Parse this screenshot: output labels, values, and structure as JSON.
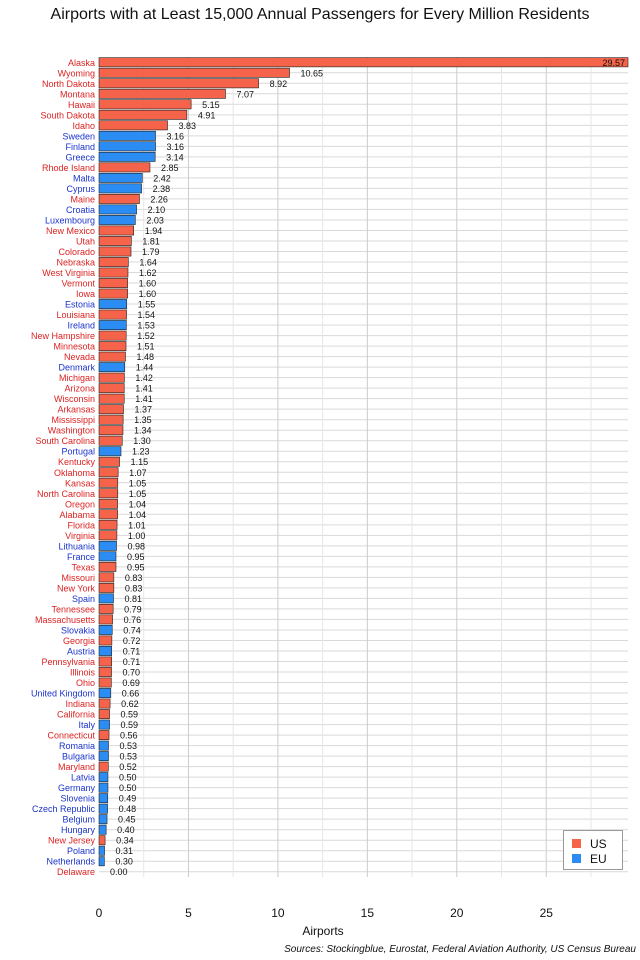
{
  "chart_data": {
    "type": "bar",
    "orientation": "horizontal",
    "title": "Airports with at Least 15,000 Annual Passengers for Every Million Residents",
    "xlabel": "Airports",
    "ylabel": "",
    "xlim": [
      0,
      29.57
    ],
    "x_ticks": [
      0,
      5,
      10,
      15,
      20,
      25
    ],
    "grid": true,
    "legend_position": "bottom-right",
    "sources": "Sources: Stockingblue, Eurostat, Federal Aviation Authority, US Census Bureau",
    "series_legend": [
      {
        "name": "US",
        "color": "#f4634a"
      },
      {
        "name": "EU",
        "color": "#2b8cf3"
      }
    ],
    "label_colors": {
      "US": "#dd2222",
      "EU": "#1a33cc"
    },
    "bars": [
      {
        "label": "Alaska",
        "group": "US",
        "value": 29.57
      },
      {
        "label": "Wyoming",
        "group": "US",
        "value": 10.65
      },
      {
        "label": "North Dakota",
        "group": "US",
        "value": 8.92
      },
      {
        "label": "Montana",
        "group": "US",
        "value": 7.07
      },
      {
        "label": "Hawaii",
        "group": "US",
        "value": 5.15
      },
      {
        "label": "South Dakota",
        "group": "US",
        "value": 4.91
      },
      {
        "label": "Idaho",
        "group": "US",
        "value": 3.83
      },
      {
        "label": "Sweden",
        "group": "EU",
        "value": 3.16
      },
      {
        "label": "Finland",
        "group": "EU",
        "value": 3.16
      },
      {
        "label": "Greece",
        "group": "EU",
        "value": 3.14
      },
      {
        "label": "Rhode Island",
        "group": "US",
        "value": 2.85
      },
      {
        "label": "Malta",
        "group": "EU",
        "value": 2.42
      },
      {
        "label": "Cyprus",
        "group": "EU",
        "value": 2.38
      },
      {
        "label": "Maine",
        "group": "US",
        "value": 2.26
      },
      {
        "label": "Croatia",
        "group": "EU",
        "value": 2.1
      },
      {
        "label": "Luxembourg",
        "group": "EU",
        "value": 2.03
      },
      {
        "label": "New Mexico",
        "group": "US",
        "value": 1.94
      },
      {
        "label": "Utah",
        "group": "US",
        "value": 1.81
      },
      {
        "label": "Colorado",
        "group": "US",
        "value": 1.79
      },
      {
        "label": "Nebraska",
        "group": "US",
        "value": 1.64
      },
      {
        "label": "West Virginia",
        "group": "US",
        "value": 1.62
      },
      {
        "label": "Vermont",
        "group": "US",
        "value": 1.6
      },
      {
        "label": "Iowa",
        "group": "US",
        "value": 1.6
      },
      {
        "label": "Estonia",
        "group": "EU",
        "value": 1.55
      },
      {
        "label": "Louisiana",
        "group": "US",
        "value": 1.54
      },
      {
        "label": "Ireland",
        "group": "EU",
        "value": 1.53
      },
      {
        "label": "New Hampshire",
        "group": "US",
        "value": 1.52
      },
      {
        "label": "Minnesota",
        "group": "US",
        "value": 1.51
      },
      {
        "label": "Nevada",
        "group": "US",
        "value": 1.48
      },
      {
        "label": "Denmark",
        "group": "EU",
        "value": 1.44
      },
      {
        "label": "Michigan",
        "group": "US",
        "value": 1.42
      },
      {
        "label": "Arizona",
        "group": "US",
        "value": 1.41
      },
      {
        "label": "Wisconsin",
        "group": "US",
        "value": 1.41
      },
      {
        "label": "Arkansas",
        "group": "US",
        "value": 1.37
      },
      {
        "label": "Mississippi",
        "group": "US",
        "value": 1.35
      },
      {
        "label": "Washington",
        "group": "US",
        "value": 1.34
      },
      {
        "label": "South Carolina",
        "group": "US",
        "value": 1.3
      },
      {
        "label": "Portugal",
        "group": "EU",
        "value": 1.23
      },
      {
        "label": "Kentucky",
        "group": "US",
        "value": 1.15
      },
      {
        "label": "Oklahoma",
        "group": "US",
        "value": 1.07
      },
      {
        "label": "Kansas",
        "group": "US",
        "value": 1.05
      },
      {
        "label": "North Carolina",
        "group": "US",
        "value": 1.05
      },
      {
        "label": "Oregon",
        "group": "US",
        "value": 1.04
      },
      {
        "label": "Alabama",
        "group": "US",
        "value": 1.04
      },
      {
        "label": "Florida",
        "group": "US",
        "value": 1.01
      },
      {
        "label": "Virginia",
        "group": "US",
        "value": 1.0
      },
      {
        "label": "Lithuania",
        "group": "EU",
        "value": 0.98
      },
      {
        "label": "France",
        "group": "EU",
        "value": 0.95
      },
      {
        "label": "Texas",
        "group": "US",
        "value": 0.95
      },
      {
        "label": "Missouri",
        "group": "US",
        "value": 0.83
      },
      {
        "label": "New York",
        "group": "US",
        "value": 0.83
      },
      {
        "label": "Spain",
        "group": "EU",
        "value": 0.81
      },
      {
        "label": "Tennessee",
        "group": "US",
        "value": 0.79
      },
      {
        "label": "Massachusetts",
        "group": "US",
        "value": 0.76
      },
      {
        "label": "Slovakia",
        "group": "EU",
        "value": 0.74
      },
      {
        "label": "Georgia",
        "group": "US",
        "value": 0.72
      },
      {
        "label": "Austria",
        "group": "EU",
        "value": 0.71
      },
      {
        "label": "Pennsylvania",
        "group": "US",
        "value": 0.71
      },
      {
        "label": "Illinois",
        "group": "US",
        "value": 0.7
      },
      {
        "label": "Ohio",
        "group": "US",
        "value": 0.69
      },
      {
        "label": "United Kingdom",
        "group": "EU",
        "value": 0.66
      },
      {
        "label": "Indiana",
        "group": "US",
        "value": 0.62
      },
      {
        "label": "California",
        "group": "US",
        "value": 0.59
      },
      {
        "label": "Italy",
        "group": "EU",
        "value": 0.59
      },
      {
        "label": "Connecticut",
        "group": "US",
        "value": 0.56
      },
      {
        "label": "Romania",
        "group": "EU",
        "value": 0.53
      },
      {
        "label": "Bulgaria",
        "group": "EU",
        "value": 0.53
      },
      {
        "label": "Maryland",
        "group": "US",
        "value": 0.52
      },
      {
        "label": "Latvia",
        "group": "EU",
        "value": 0.5
      },
      {
        "label": "Germany",
        "group": "EU",
        "value": 0.5
      },
      {
        "label": "Slovenia",
        "group": "EU",
        "value": 0.49
      },
      {
        "label": "Czech Republic",
        "group": "EU",
        "value": 0.48
      },
      {
        "label": "Belgium",
        "group": "EU",
        "value": 0.45
      },
      {
        "label": "Hungary",
        "group": "EU",
        "value": 0.4
      },
      {
        "label": "New Jersey",
        "group": "US",
        "value": 0.34
      },
      {
        "label": "Poland",
        "group": "EU",
        "value": 0.31
      },
      {
        "label": "Netherlands",
        "group": "EU",
        "value": 0.3
      },
      {
        "label": "Delaware",
        "group": "US",
        "value": 0.0
      }
    ]
  }
}
